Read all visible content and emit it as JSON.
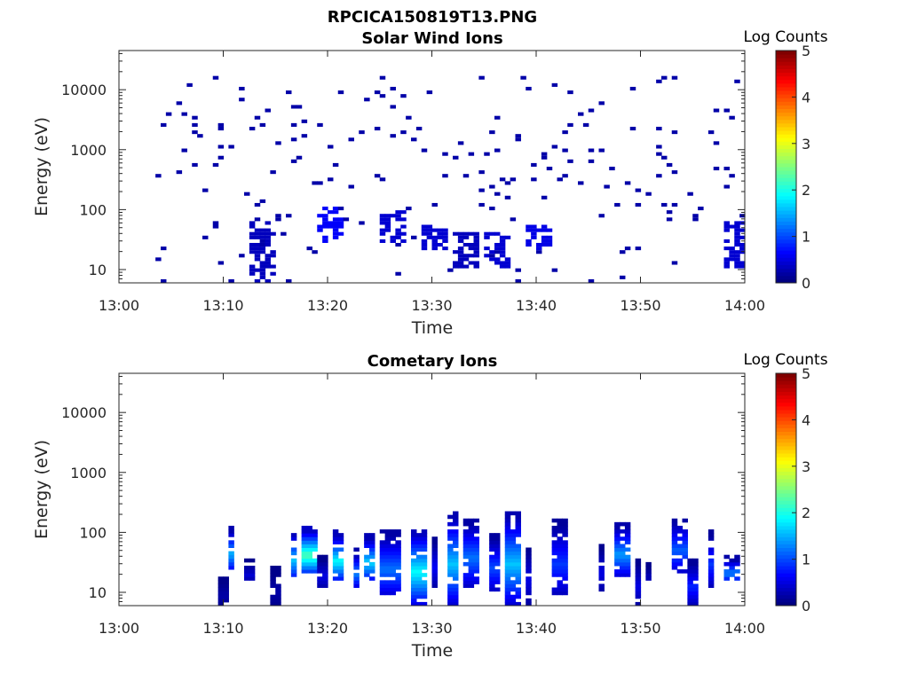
{
  "figure": {
    "title": "RPCICA150819T13.PNG"
  },
  "colormap": {
    "name": "jet",
    "label": "Log Counts",
    "range": [
      0,
      5
    ],
    "ticks": [
      "0",
      "1",
      "2",
      "3",
      "4",
      "5"
    ]
  },
  "chart_data": [
    {
      "type": "heatmap",
      "title": "Solar Wind Ions",
      "xlabel": "Time",
      "ylabel": "Energy (eV)",
      "x_range": [
        "13:00",
        "14:00"
      ],
      "x_ticks": [
        "13:00",
        "13:10",
        "13:20",
        "13:30",
        "13:40",
        "13:50",
        "14:00"
      ],
      "y_scale": "log",
      "y_range": [
        6,
        45000
      ],
      "y_ticks": [
        "10",
        "100",
        "1000",
        "10000"
      ],
      "y_tick_values": [
        10,
        100,
        1000,
        10000
      ],
      "color_label": "Log Counts",
      "color_range": [
        0,
        5
      ],
      "typical_log_counts": 0.2,
      "description_of_features": [
        {
          "time": "13:03-14:00",
          "energy_range_eV": [
            150,
            15000
          ],
          "log_counts": 0.1,
          "kind": "sparse_scattered"
        },
        {
          "time": "13:13.5",
          "energy_range_eV": [
            6,
            60
          ],
          "log_counts": 0.3
        },
        {
          "time": "13:20",
          "energy_range_eV": [
            25,
            100
          ],
          "log_counts": 0.6
        },
        {
          "time": "13:26",
          "energy_range_eV": [
            25,
            90
          ],
          "log_counts": 0.4
        },
        {
          "time": "13:30",
          "energy_range_eV": [
            20,
            50
          ],
          "log_counts": 0.4
        },
        {
          "time": "13:33",
          "energy_range_eV": [
            10,
            40
          ],
          "log_counts": 0.3
        },
        {
          "time": "13:36",
          "energy_range_eV": [
            10,
            40
          ],
          "log_counts": 0.4
        },
        {
          "time": "13:40",
          "energy_range_eV": [
            20,
            50
          ],
          "log_counts": 0.5
        },
        {
          "time": "13:59",
          "energy_range_eV": [
            10,
            60
          ],
          "log_counts": 0.4
        }
      ]
    },
    {
      "type": "heatmap",
      "title": "Cometary Ions",
      "xlabel": "Time",
      "ylabel": "Energy (eV)",
      "x_range": [
        "13:00",
        "14:00"
      ],
      "x_ticks": [
        "13:00",
        "13:10",
        "13:20",
        "13:30",
        "13:40",
        "13:50",
        "14:00"
      ],
      "y_scale": "log",
      "y_range": [
        6,
        45000
      ],
      "y_ticks": [
        "10",
        "100",
        "1000",
        "10000"
      ],
      "y_tick_values": [
        10,
        100,
        1000,
        10000
      ],
      "color_label": "Log Counts",
      "color_range": [
        0,
        5
      ],
      "bursts": [
        {
          "t0": 13.5,
          "t1": 14.5,
          "emin": 6,
          "emax": 18,
          "peak": 0.2
        },
        {
          "t0": 14.6,
          "t1": 15.2,
          "emin": 22,
          "emax": 120,
          "peak": 1.5
        },
        {
          "t0": 16.5,
          "t1": 18.0,
          "emin": 15,
          "emax": 35,
          "peak": 0.4
        },
        {
          "t0": 20.5,
          "t1": 21.5,
          "emin": 6,
          "emax": 25,
          "peak": 0.2
        },
        {
          "t0": 23.0,
          "t1": 24.2,
          "emin": 15,
          "emax": 110,
          "peak": 1.6
        },
        {
          "t0": 25.0,
          "t1": 27.0,
          "emin": 20,
          "emax": 120,
          "peak": 2.3
        },
        {
          "t0": 27.2,
          "t1": 28.0,
          "emin": 12,
          "emax": 40,
          "peak": 0.5
        },
        {
          "t0": 29.0,
          "t1": 30.5,
          "emin": 15,
          "emax": 100,
          "peak": 1.9
        },
        {
          "t0": 32.0,
          "t1": 32.8,
          "emin": 12,
          "emax": 50,
          "peak": 1.3
        },
        {
          "t0": 33.3,
          "t1": 34.7,
          "emin": 15,
          "emax": 90,
          "peak": 1.7
        },
        {
          "t0": 35.8,
          "t1": 38.0,
          "emin": 8,
          "emax": 100,
          "peak": 1.2
        },
        {
          "t0": 39.8,
          "t1": 41.7,
          "emin": 6,
          "emax": 110,
          "peak": 1.9
        },
        {
          "t0": 42.5,
          "t1": 43.3,
          "emin": 12,
          "emax": 80,
          "peak": 0.6
        },
        {
          "t0": 44.5,
          "t1": 46.2,
          "emin": 6,
          "emax": 200,
          "peak": 1.6
        },
        {
          "t0": 47.0,
          "t1": 49.0,
          "emin": 12,
          "emax": 160,
          "peak": 1.2
        },
        {
          "t0": 50.5,
          "t1": 52.0,
          "emin": 10,
          "emax": 90,
          "peak": 1.0
        },
        {
          "t0": 53.0,
          "t1": 55.0,
          "emin": 6,
          "emax": 200,
          "peak": 1.6
        },
        {
          "t0": 55.5,
          "t1": 56.5,
          "emin": 6,
          "emax": 60,
          "peak": 0.5
        },
        {
          "t0": 59.0,
          "t1": 61.5,
          "emin": 8,
          "emax": 150,
          "peak": 0.9
        },
        {
          "t0": 65.5,
          "t1": 66.5,
          "emin": 10,
          "emax": 60,
          "peak": 0.5
        },
        {
          "t0": 68.0,
          "t1": 70.0,
          "emin": 18,
          "emax": 140,
          "peak": 1.4
        },
        {
          "t0": 70.5,
          "t1": 71.5,
          "emin": 6,
          "emax": 35,
          "peak": 0.5
        },
        {
          "t0": 72.0,
          "t1": 73.0,
          "emin": 15,
          "emax": 30,
          "peak": 0.3
        },
        {
          "t0": 75.5,
          "t1": 77.5,
          "emin": 20,
          "emax": 170,
          "peak": 1.1
        },
        {
          "t0": 77.5,
          "t1": 79.0,
          "emin": 6,
          "emax": 35,
          "peak": 0.8
        },
        {
          "t0": 80.5,
          "t1": 81.5,
          "emin": 12,
          "emax": 100,
          "peak": 0.9
        },
        {
          "t0": 83.0,
          "t1": 85.0,
          "emin": 15,
          "emax": 40,
          "peak": 1.3
        }
      ]
    }
  ]
}
